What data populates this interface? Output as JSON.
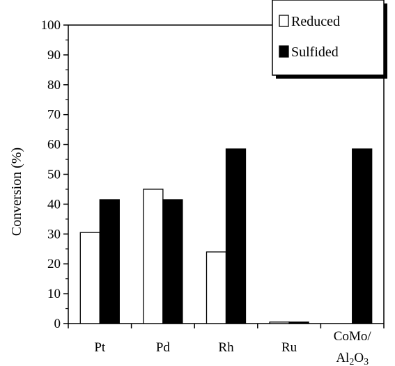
{
  "chart_data": {
    "type": "bar",
    "title": "",
    "xlabel": "",
    "ylabel": "Conversion (%)",
    "ylim": [
      0,
      100
    ],
    "yticks": [
      0,
      10,
      20,
      30,
      40,
      50,
      60,
      70,
      80,
      90,
      100
    ],
    "categories": [
      "Pt",
      "Pd",
      "Rh",
      "Ru",
      "CoMo/Al2O3"
    ],
    "category_label_lines": [
      [
        "Pt"
      ],
      [
        "Pd"
      ],
      [
        "Rh"
      ],
      [
        "Ru"
      ],
      [
        "CoMo/",
        "Al2O3"
      ]
    ],
    "series": [
      {
        "name": "Reduced",
        "values": [
          30.5,
          45,
          24,
          0.5,
          null
        ],
        "fill": "#ffffff",
        "stroke": "#000000"
      },
      {
        "name": "Sulfided",
        "values": [
          41.5,
          41.5,
          58.5,
          0.5,
          58.5
        ],
        "fill": "#000000",
        "stroke": "#000000"
      }
    ],
    "grid": false,
    "legend_position": "top-right"
  }
}
